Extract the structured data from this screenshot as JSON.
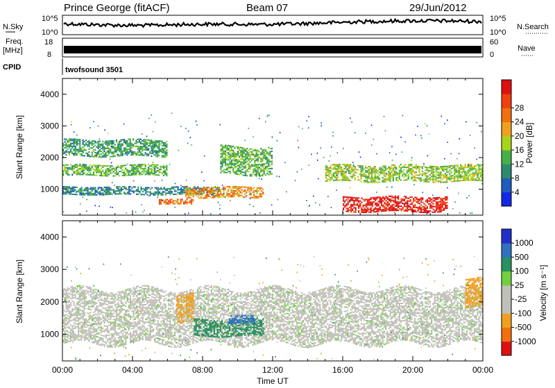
{
  "header": {
    "station": "Prince George (fitACF)",
    "beam": "Beam 07",
    "date": "29/Jun/2012"
  },
  "params": {
    "nsky_label": "N.Sky",
    "nsky_ticks": [
      "10^5",
      "10^0"
    ],
    "nsearch_label": "N.Search",
    "nsearch_ticks": [
      "10^5",
      "10^0"
    ],
    "freq_label_top": "Freq.",
    "freq_label_unit": "[MHz]",
    "freq_ticks": [
      "18",
      "8"
    ],
    "nave_label": "Nave",
    "nave_ticks": [
      "60",
      "0"
    ],
    "cpid_label": "CPID",
    "cpid_value": "twofsound 3501"
  },
  "colors": {
    "power": [
      "#1428e6",
      "#1f5cc0",
      "#2e8a6e",
      "#48b048",
      "#a8d418",
      "#f0a020",
      "#f07010",
      "#f04010",
      "#e01010"
    ],
    "velocity": [
      "#2030c8",
      "#3070c0",
      "#2a9060",
      "#70d040",
      "#c0c0b8",
      "#c0c0b8",
      "#f0a020",
      "#f07010",
      "#e01010"
    ]
  },
  "chart_data": [
    {
      "type": "heatmap",
      "name": "power",
      "ylabel": "Slant Range [km]",
      "ylim": [
        180,
        4500
      ],
      "yticks": [
        1000,
        2000,
        3000,
        4000
      ],
      "xlim": [
        0,
        24
      ],
      "colorbar": {
        "label": "Power [dB]",
        "ticks": [
          "4",
          "8",
          "12",
          "16",
          "20",
          "24",
          "28"
        ],
        "range": [
          0,
          30
        ]
      },
      "echo_bands": [
        {
          "x0": 0.0,
          "x1": 6.0,
          "range": [
            1400,
            1800
          ],
          "value": 12
        },
        {
          "x0": 0.0,
          "x1": 6.0,
          "range": [
            2000,
            2600
          ],
          "value": 10
        },
        {
          "x0": 0.0,
          "x1": 9.0,
          "range": [
            800,
            1100
          ],
          "value": 8
        },
        {
          "x0": 5.5,
          "x1": 7.5,
          "range": [
            500,
            700
          ],
          "value": 22
        },
        {
          "x0": 7.0,
          "x1": 11.5,
          "range": [
            700,
            1100
          ],
          "value": 20
        },
        {
          "x0": 9.0,
          "x1": 12.0,
          "range": [
            1400,
            2400
          ],
          "value": 12
        },
        {
          "x0": 15.0,
          "x1": 24.0,
          "range": [
            1200,
            1800
          ],
          "value": 14
        },
        {
          "x0": 16.0,
          "x1": 22.0,
          "range": [
            250,
            800
          ],
          "value": 28
        }
      ]
    },
    {
      "type": "heatmap",
      "name": "velocity",
      "ylabel": "Slant Range [km]",
      "ylim": [
        180,
        4500
      ],
      "yticks": [
        1000,
        2000,
        3000,
        4000
      ],
      "xlim": [
        0,
        24
      ],
      "xlabel": "Time UT",
      "xticks": [
        "00:00",
        "04:00",
        "08:00",
        "12:00",
        "16:00",
        "20:00",
        "00:00"
      ],
      "colorbar": {
        "label": "Velocity [m s⁻¹]",
        "ticks": [
          "1000",
          "500",
          "100",
          "25",
          "-25",
          "-100",
          "-500",
          "-1000"
        ]
      },
      "echo_bands": [
        {
          "x0": 0.0,
          "x1": 24.0,
          "range": [
            600,
            2500
          ],
          "value": 0
        },
        {
          "x0": 6.5,
          "x1": 7.5,
          "range": [
            1300,
            2300
          ],
          "value": -300
        },
        {
          "x0": 7.5,
          "x1": 11.5,
          "range": [
            900,
            1500
          ],
          "value": 150
        },
        {
          "x0": 9.5,
          "x1": 11.0,
          "range": [
            1300,
            1600
          ],
          "value": 600
        },
        {
          "x0": 23.0,
          "x1": 24.0,
          "range": [
            1800,
            2800
          ],
          "value": -300
        }
      ]
    }
  ]
}
